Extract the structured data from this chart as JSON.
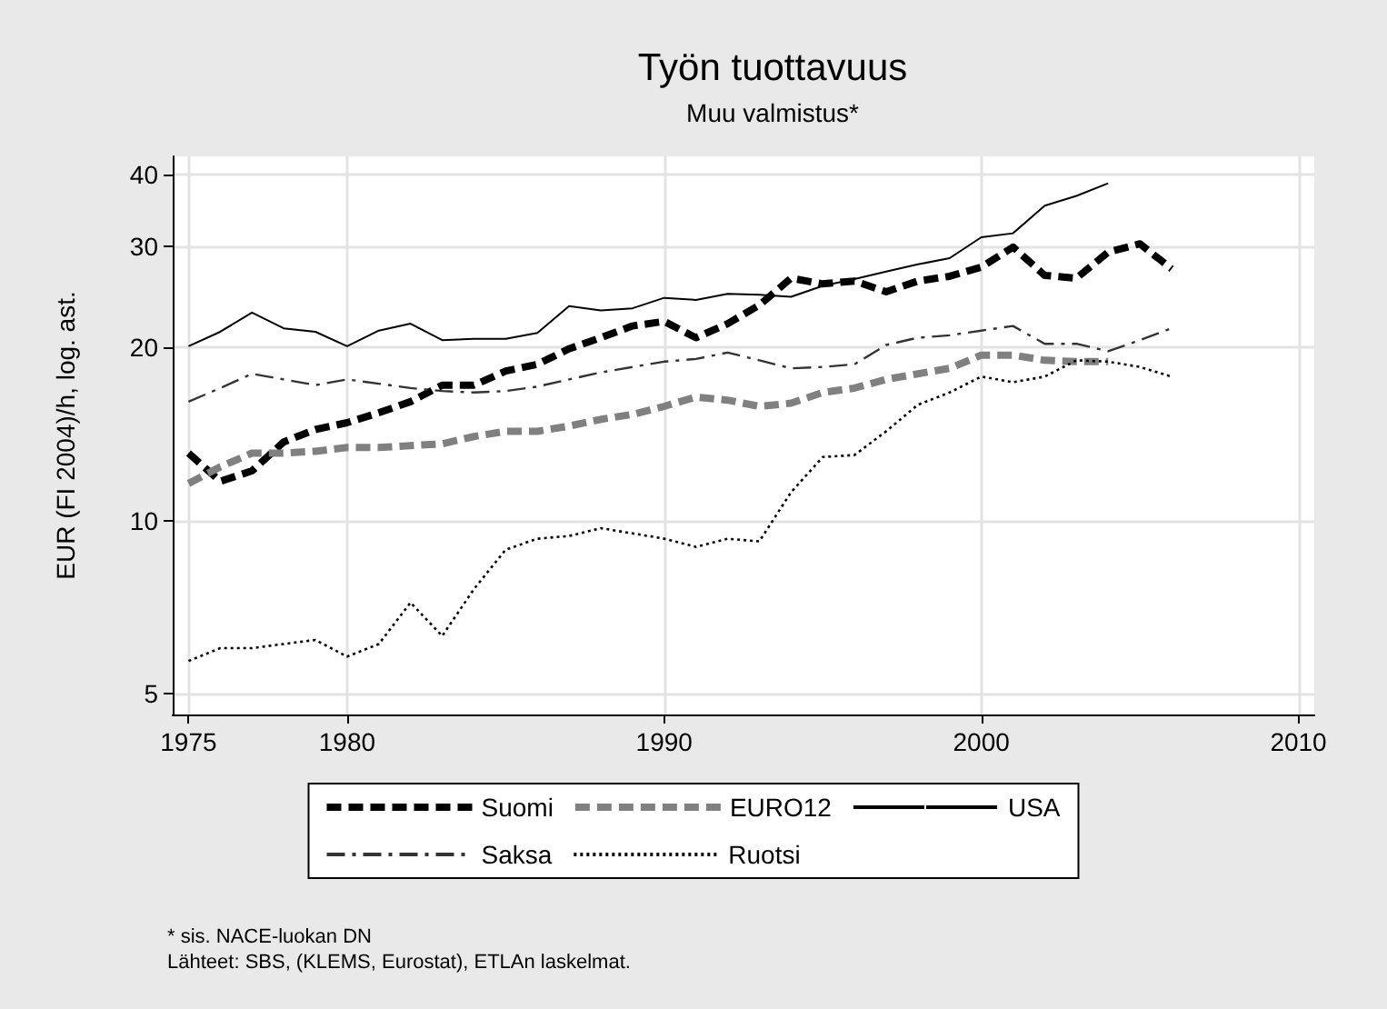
{
  "chart_data": {
    "type": "line",
    "title": "Työn tuottavuus",
    "subtitle": "Muu valmistus*",
    "ylabel": "EUR (FI 2004)/h, log. ast.",
    "annotations": [
      "* sis. NACE-luokan DN",
      "Lähteet: SBS, (KLEMS, Eurostat), ETLAn laskelmat."
    ],
    "x": [
      1975,
      1976,
      1977,
      1978,
      1979,
      1980,
      1981,
      1982,
      1983,
      1984,
      1985,
      1986,
      1987,
      1988,
      1989,
      1990,
      1991,
      1992,
      1993,
      1994,
      1995,
      1996,
      1997,
      1998,
      1999,
      2000,
      2001,
      2002,
      2003,
      2004,
      2005,
      2006
    ],
    "series": [
      {
        "name": "Suomi",
        "color": "#000000",
        "line_style": "dashed",
        "values": [
          13.1,
          11.7,
          12.2,
          13.7,
          14.4,
          14.8,
          15.4,
          16.1,
          17.2,
          17.2,
          18.2,
          18.7,
          19.9,
          20.8,
          21.8,
          22.2,
          20.8,
          22.0,
          23.7,
          26.4,
          25.8,
          26.1,
          25.0,
          26.1,
          26.6,
          27.6,
          29.9,
          26.7,
          26.4,
          29.3,
          30.3,
          27.4
        ]
      },
      {
        "name": "EURO12",
        "color": "#808080",
        "line_style": "dashed",
        "values": [
          11.6,
          12.4,
          13.1,
          13.1,
          13.2,
          13.4,
          13.4,
          13.5,
          13.6,
          14.0,
          14.3,
          14.3,
          14.6,
          15.0,
          15.3,
          15.8,
          16.4,
          16.2,
          15.8,
          16.0,
          16.7,
          17.0,
          17.6,
          18.0,
          18.4,
          19.4,
          19.4,
          19.0,
          18.9,
          18.9,
          null,
          null
        ]
      },
      {
        "name": "USA",
        "color": "#000000",
        "line_style": "solid",
        "values": [
          20.1,
          21.3,
          23.0,
          21.6,
          21.3,
          20.1,
          21.4,
          22.0,
          20.6,
          20.7,
          20.7,
          21.2,
          23.6,
          23.2,
          23.4,
          24.4,
          24.2,
          24.8,
          24.7,
          24.5,
          25.6,
          26.3,
          27.1,
          27.9,
          28.6,
          31.1,
          31.6,
          35.3,
          36.7,
          38.6,
          null,
          null
        ]
      },
      {
        "name": "Saksa",
        "color": "#333333",
        "line_style": "dashdot",
        "values": [
          16.1,
          17.0,
          18.0,
          17.6,
          17.2,
          17.6,
          17.3,
          17.0,
          16.8,
          16.7,
          16.8,
          17.1,
          17.6,
          18.1,
          18.5,
          18.9,
          19.1,
          19.6,
          19.0,
          18.4,
          18.5,
          18.7,
          20.2,
          20.8,
          21.0,
          21.4,
          21.8,
          20.3,
          20.3,
          19.7,
          20.6,
          21.6
        ]
      },
      {
        "name": "Ruotsi",
        "color": "#000000",
        "line_style": "dotted",
        "values": [
          5.7,
          6.0,
          6.0,
          6.1,
          6.2,
          5.8,
          6.1,
          7.2,
          6.3,
          7.6,
          8.9,
          9.3,
          9.4,
          9.7,
          9.5,
          9.3,
          9.0,
          9.3,
          9.2,
          11.2,
          12.9,
          13.0,
          14.3,
          15.9,
          16.7,
          17.8,
          17.4,
          17.8,
          19.0,
          18.9,
          18.5,
          17.8
        ]
      }
    ],
    "xlim": [
      1974.5,
      2010.5
    ],
    "xticks": [
      1975,
      1980,
      1990,
      2000,
      2010
    ],
    "ylim": [
      4.6,
      43
    ],
    "yticks": [
      5,
      10,
      20,
      30,
      40
    ],
    "log": "y",
    "grid": true,
    "legend": "bottom",
    "marker": "none"
  }
}
